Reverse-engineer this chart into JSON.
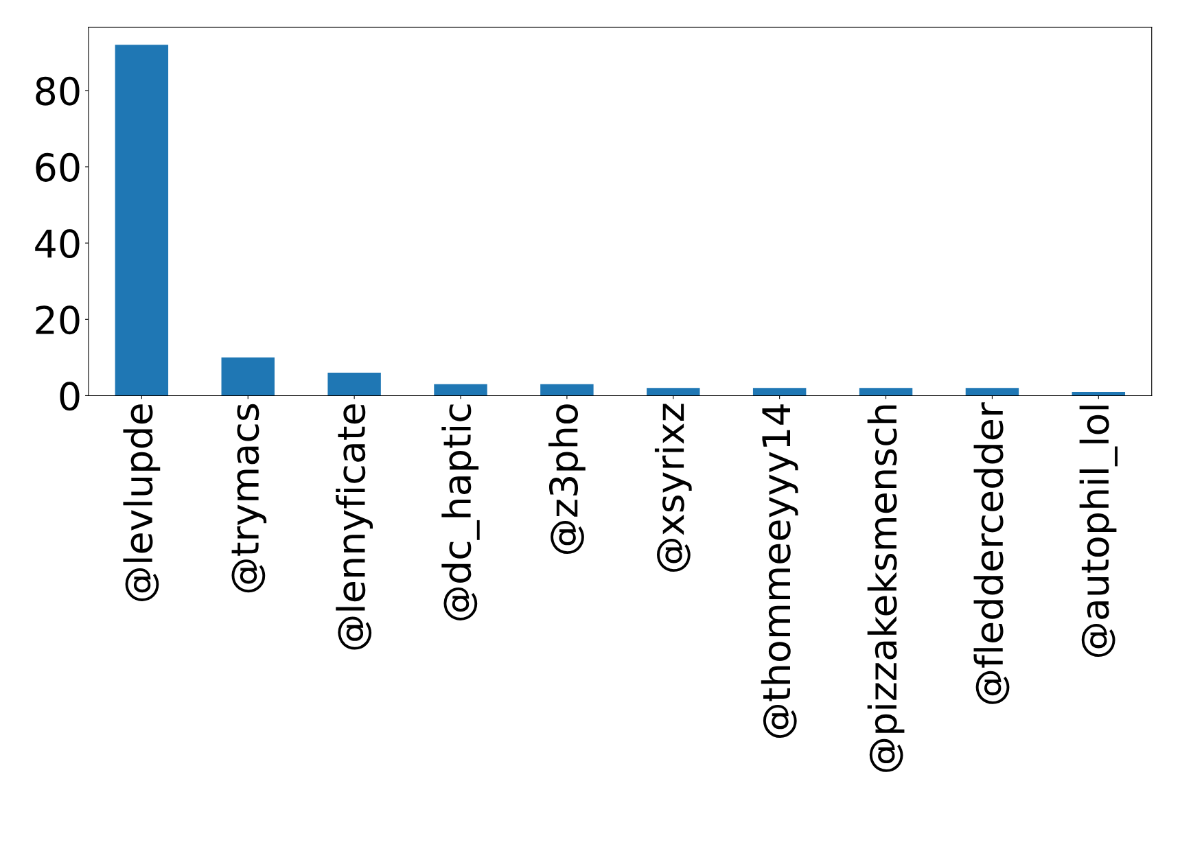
{
  "chart_data": {
    "type": "bar",
    "categories": [
      "@levlupde",
      "@trymacs",
      "@lennyficate",
      "@dc_haptic",
      "@z3pho",
      "@xsyrixz",
      "@thommeeyyy14",
      "@pizzakeksmensch",
      "@fleddercedder",
      "@autophil_lol"
    ],
    "values": [
      92,
      10,
      6,
      3,
      3,
      2,
      2,
      2,
      2,
      1
    ],
    "color": "#1f77b4",
    "ylim": [
      0,
      96.6
    ],
    "yticks": [
      0,
      20,
      40,
      60,
      80
    ],
    "grid": false,
    "legend": false
  }
}
